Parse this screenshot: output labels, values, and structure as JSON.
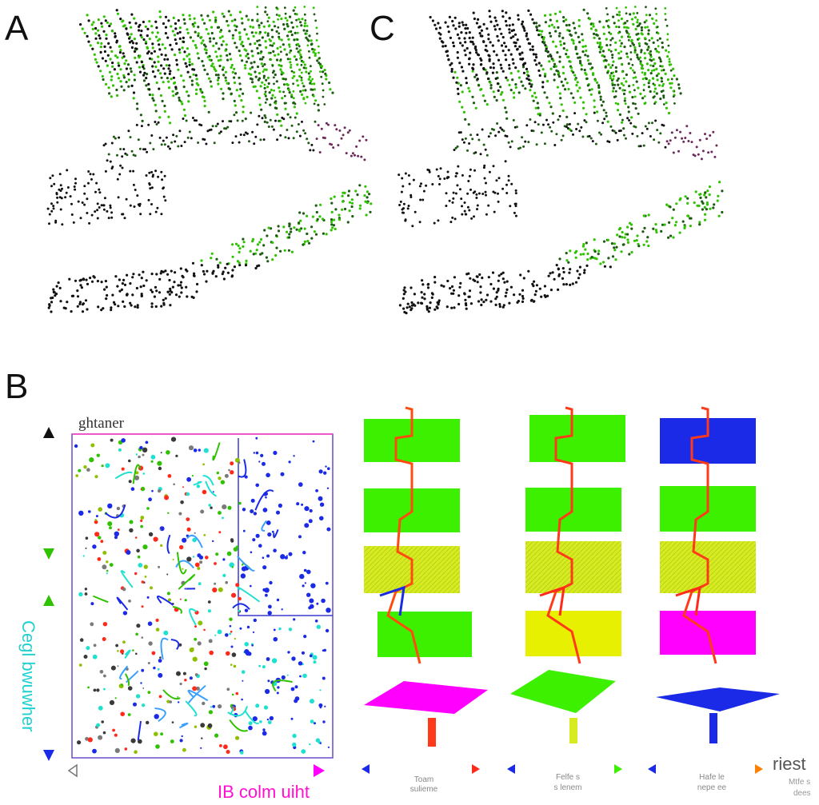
{
  "panels": {
    "a_letter": "A",
    "b_letter": "B",
    "c_letter": "C"
  },
  "panel_b": {
    "map_title": "ghtaner",
    "y_axis_label": "Cegl bwuwher",
    "x_axis_label": "IB colm uiht",
    "mini_scale_1_line_1": "Toam",
    "mini_scale_1_line_2": "sulieme",
    "mini_scale_2_line_1": "Felfe s",
    "mini_scale_2_line_2": "s lenem",
    "mini_scale_3_line_1": "Hafe le",
    "mini_scale_3_line_2": "nepe ee",
    "side_label_1": "riest",
    "side_label_2": "Mtfe s",
    "side_label_3": "dees"
  },
  "colors": {
    "green": "#2fc200",
    "dark_green": "#1d5a12",
    "black": "#111111",
    "purple": "#6b2a5c",
    "blue": "#1a2ae6",
    "magenta": "#ff00ff",
    "yellow": "#e6f000",
    "lime": "#3cf000",
    "red": "#ff2a1a",
    "cyan": "#20e0d0"
  },
  "icons": [
    "up-down-arrow-icon",
    "left-right-arrow-icon"
  ]
}
